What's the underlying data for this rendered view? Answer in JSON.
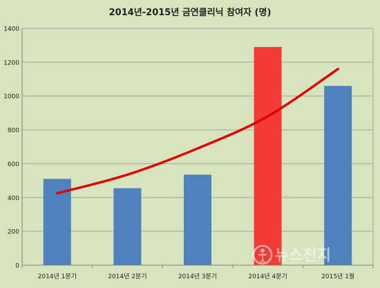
{
  "chart_data": {
    "type": "bar",
    "title": "2014년-2015년 금연클리닉 참여자 (명)",
    "categories": [
      "2014년 1분기",
      "2014년 2분기",
      "2014년 3분기",
      "2014년 4분기",
      "2015년 1월"
    ],
    "values": [
      510,
      455,
      535,
      1290,
      1060
    ],
    "bar_colors": [
      "#4f81bd",
      "#4f81bd",
      "#4f81bd",
      "#f23b35",
      "#4f81bd"
    ],
    "ylim": [
      0,
      1400
    ],
    "yticks": [
      0,
      200,
      400,
      600,
      800,
      1000,
      1200,
      1400
    ],
    "grid": true,
    "trendline": {
      "type": "exponential",
      "color": "#e00000",
      "points": [
        [
          0,
          425
        ],
        [
          1,
          535
        ],
        [
          2,
          690
        ],
        [
          3,
          880
        ],
        [
          4,
          1160
        ]
      ]
    }
  },
  "watermark_text": "뉴스천지"
}
